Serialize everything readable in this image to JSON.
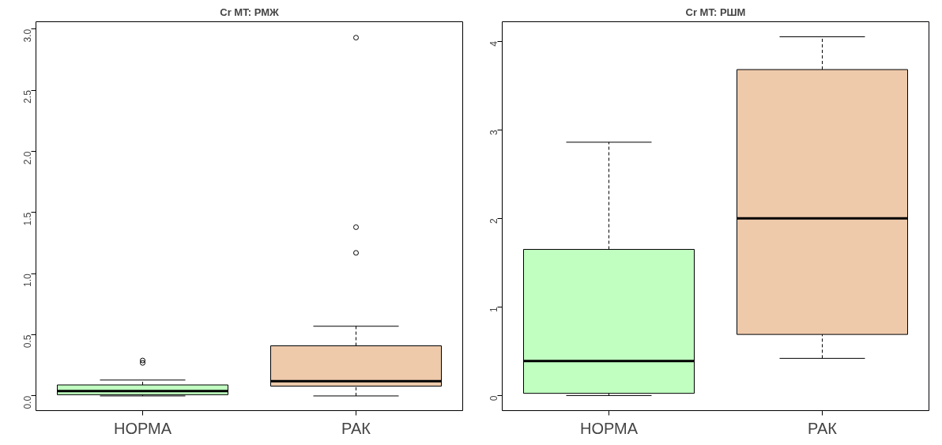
{
  "chart_data": [
    {
      "type": "box",
      "title": "Cr MT: РМЖ",
      "categories": [
        "НОРМА",
        "РАК"
      ],
      "colors": [
        "#c0ffc0",
        "#eecaab"
      ],
      "ylim": [
        -0.12,
        3.06
      ],
      "yticks": [
        {
          "value": 0,
          "label": "0.0"
        },
        0.5,
        {
          "value": 1,
          "label": "1.0"
        },
        1.5,
        {
          "value": 2,
          "label": "2.0"
        },
        2.5,
        {
          "value": 3,
          "label": "3.0"
        }
      ],
      "grid": false,
      "boxes": [
        {
          "low": 0,
          "q1": 0.01,
          "median": 0.04,
          "q3": 0.09,
          "high": 0.13,
          "outliers": [
            0.27,
            0.29
          ]
        },
        {
          "low": 0,
          "q1": 0.08,
          "median": 0.12,
          "q3": 0.41,
          "high": 0.57,
          "outliers": [
            1.17,
            1.38,
            2.93
          ]
        }
      ]
    },
    {
      "type": "box",
      "title": "Cr MT: РШМ",
      "categories": [
        "НОРМА",
        "РАК"
      ],
      "colors": [
        "#c0ffc0",
        "#eecaab"
      ],
      "ylim": [
        -0.17,
        4.22
      ],
      "yticks": [
        0,
        1,
        2,
        3,
        4
      ],
      "grid": false,
      "boxes": [
        {
          "low": 0,
          "q1": 0.025,
          "median": 0.39,
          "q3": 1.65,
          "high": 2.86
        },
        {
          "low": 0.42,
          "q1": 0.69,
          "median": 2.0,
          "q3": 3.68,
          "high": 4.05
        }
      ]
    }
  ]
}
